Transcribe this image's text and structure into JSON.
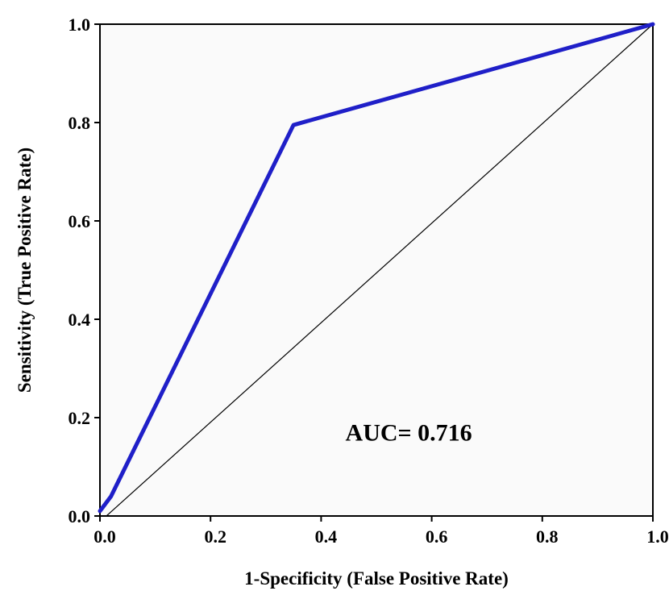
{
  "chart_data": {
    "type": "line",
    "title": "",
    "xlabel": "1-Specificity (False Positive Rate)",
    "ylabel": "Sensitivity (True Positive Rate)",
    "xlim": [
      0,
      1
    ],
    "ylim": [
      0,
      1
    ],
    "x_ticks": [
      {
        "value": 0.0,
        "label": "0.0"
      },
      {
        "value": 0.2,
        "label": "0.2"
      },
      {
        "value": 0.4,
        "label": "0.4"
      },
      {
        "value": 0.6,
        "label": "0.6"
      },
      {
        "value": 0.8,
        "label": "0.8"
      },
      {
        "value": 1.0,
        "label": "1.0"
      }
    ],
    "y_ticks": [
      {
        "value": 0.0,
        "label": "0.0"
      },
      {
        "value": 0.2,
        "label": "0.2"
      },
      {
        "value": 0.4,
        "label": "0.4"
      },
      {
        "value": 0.6,
        "label": "0.6"
      },
      {
        "value": 0.8,
        "label": "0.8"
      },
      {
        "value": 1.0,
        "label": "1.0"
      }
    ],
    "grid": false,
    "legend": "none",
    "series": [
      {
        "color": "#1f1fc8",
        "x": [
          0.0,
          0.02,
          0.35,
          1.0
        ],
        "y": [
          0.01,
          0.04,
          0.795,
          1.0
        ]
      }
    ],
    "reference_line": {
      "color": "#000000",
      "x": [
        0.0,
        1.0
      ],
      "y": [
        0.0,
        1.0
      ]
    },
    "annotation": {
      "text": "AUC= 0.716",
      "x": 0.85,
      "y": 0.17
    }
  }
}
